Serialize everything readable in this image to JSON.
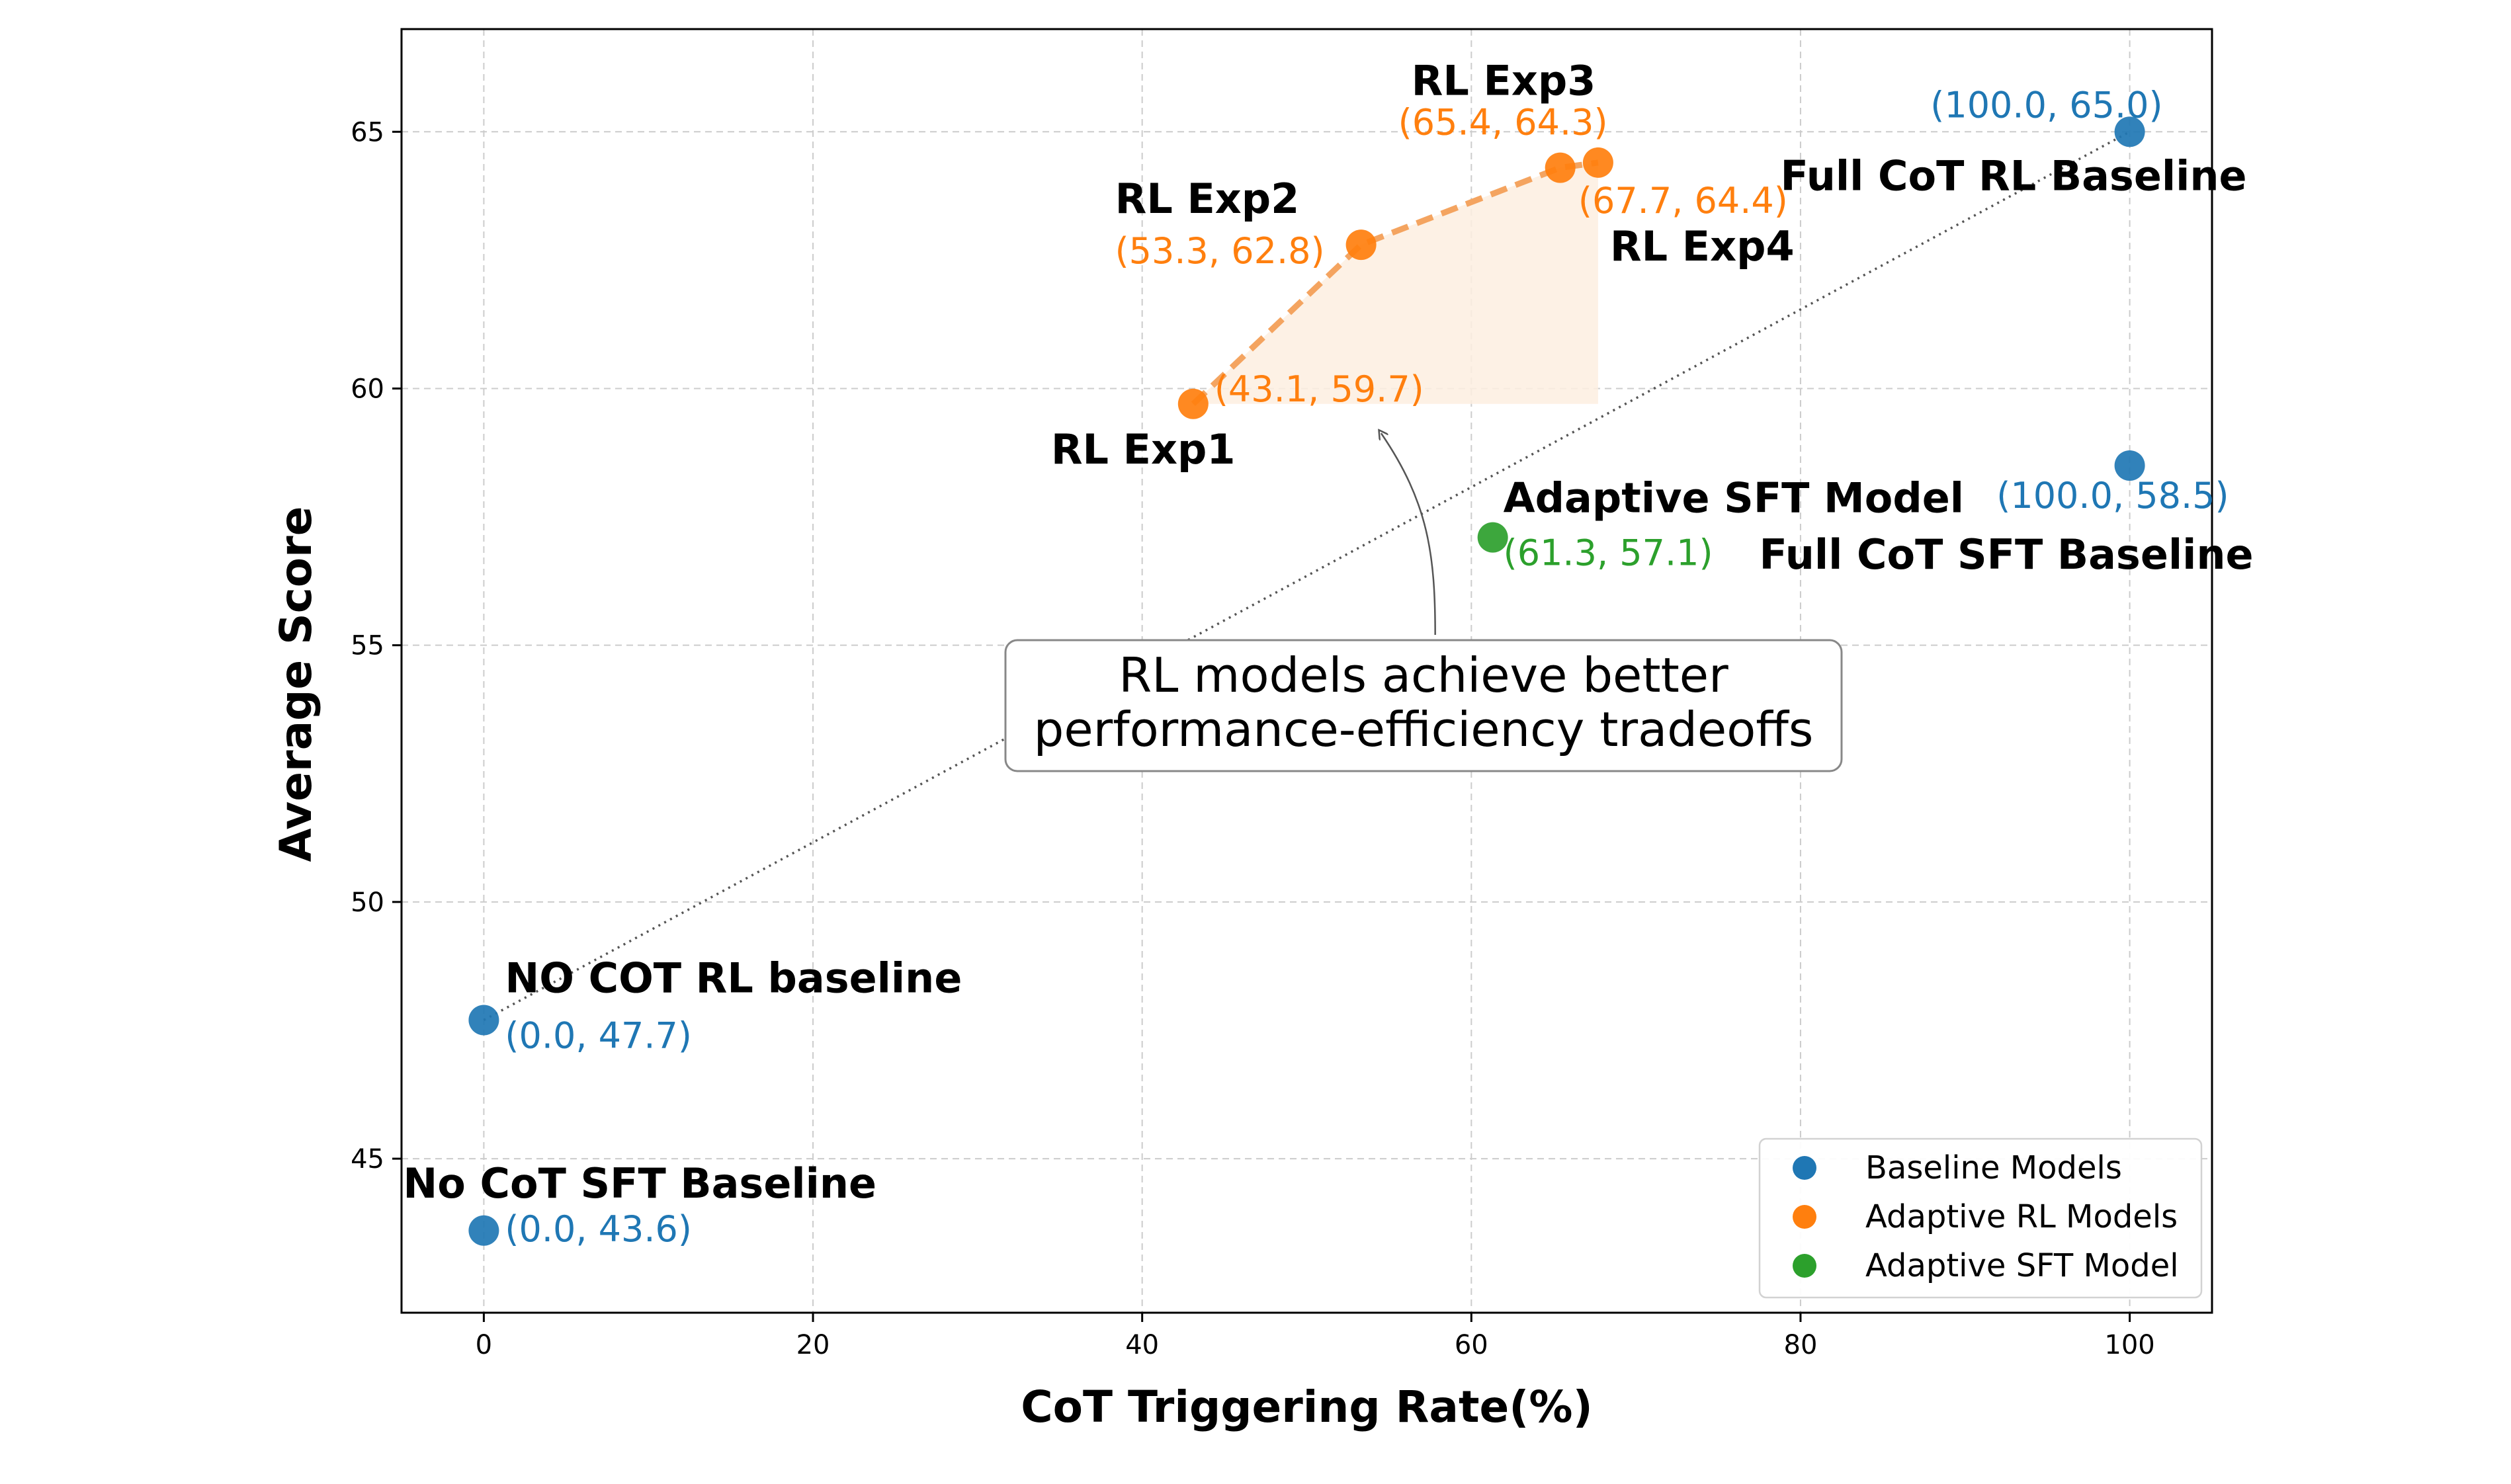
{
  "chart_data": {
    "type": "scatter",
    "xlabel": "CoT Triggering Rate(%)",
    "ylabel": "Average Score",
    "xlim": [
      -5,
      105
    ],
    "ylim": [
      42,
      67
    ],
    "xticks": [
      0,
      20,
      40,
      60,
      80,
      100
    ],
    "yticks": [
      45,
      50,
      55,
      60,
      65
    ],
    "grid": true,
    "legend_position": "lower-right",
    "colors": {
      "baseline": "#1f77b4",
      "rl": "#ff7f0e",
      "sft": "#2ca02c",
      "rl_fill": "#fdeee0"
    },
    "series": [
      {
        "name": "Baseline Models",
        "color": "#1f77b4",
        "points": [
          {
            "label": "NO COT RL baseline",
            "coord": "(0.0, 47.7)",
            "x": 0.0,
            "y": 47.7
          },
          {
            "label": "No CoT SFT Baseline",
            "coord": "(0.0, 43.6)",
            "x": 0.0,
            "y": 43.6
          },
          {
            "label": "Full CoT RL Baseline",
            "coord": "(100.0, 65.0)",
            "x": 100.0,
            "y": 65.0
          },
          {
            "label": "Full CoT SFT Baseline",
            "coord": "(100.0, 58.5)",
            "x": 100.0,
            "y": 58.5
          }
        ]
      },
      {
        "name": "Adaptive RL Models",
        "color": "#ff7f0e",
        "points": [
          {
            "label": "RL Exp1",
            "coord": "(43.1, 59.7)",
            "x": 43.1,
            "y": 59.7
          },
          {
            "label": "RL Exp2",
            "coord": "(53.3, 62.8)",
            "x": 53.3,
            "y": 62.8
          },
          {
            "label": "RL Exp3",
            "coord": "(65.4, 64.3)",
            "x": 65.4,
            "y": 64.3
          },
          {
            "label": "RL Exp4",
            "coord": "(67.7, 64.4)",
            "x": 67.7,
            "y": 64.4
          }
        ]
      },
      {
        "name": "Adaptive SFT Model",
        "color": "#2ca02c",
        "points": [
          {
            "label": "Adaptive SFT Model",
            "coord": "(61.3, 57.1)",
            "x": 61.3,
            "y": 57.1
          }
        ]
      }
    ],
    "reference_line": {
      "from": [
        0.0,
        47.7
      ],
      "to": [
        100.0,
        65.0
      ],
      "style": "dotted"
    },
    "annotation": {
      "lines": [
        "RL models achieve better",
        "performance-efficiency tradeoffs"
      ],
      "box_center": [
        57,
        53.8
      ],
      "arrow_to": [
        55,
        59
      ]
    }
  }
}
